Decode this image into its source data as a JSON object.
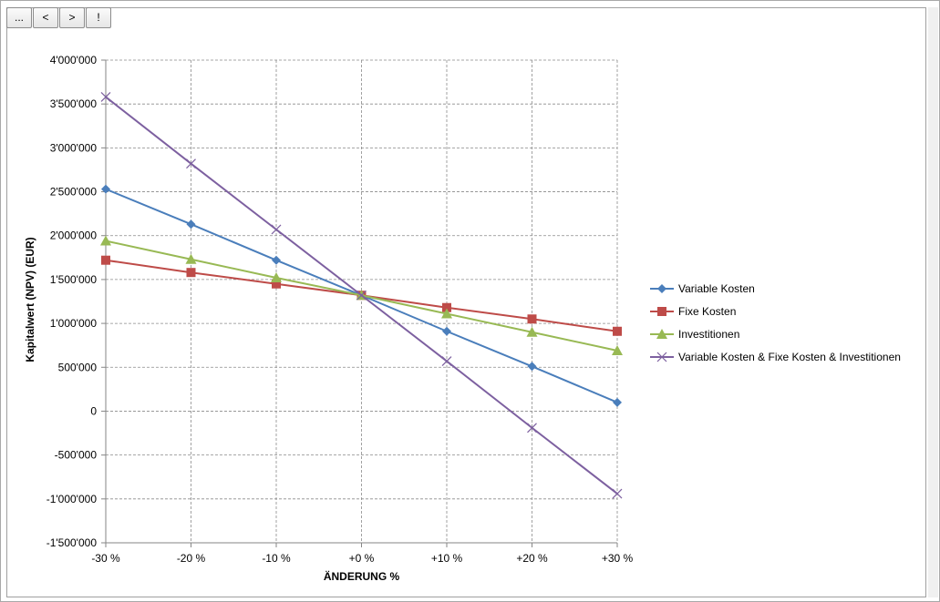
{
  "toolbar": {
    "buttons": [
      "...",
      "<",
      ">",
      "!"
    ]
  },
  "chart_data": {
    "type": "line",
    "categories": [
      "-30 %",
      "-20 %",
      "-10 %",
      "+0 %",
      "+10 %",
      "+20 %",
      "+30 %"
    ],
    "xlabel": "ÄNDERUNG %",
    "ylabel": "Kapitalwert (NPV) (EUR)",
    "ylim": [
      -1500000,
      4000000
    ],
    "ystep": 500000,
    "yticks": [
      "-1'500'000",
      "-1'000'000",
      "-500'000",
      "0",
      "500'000",
      "1'000'000",
      "1'500'000",
      "2'000'000",
      "2'500'000",
      "3'000'000",
      "3'500'000",
      "4'000'000"
    ],
    "grid": true,
    "legend_position": "right",
    "series": [
      {
        "name": "Variable Kosten",
        "color": "#4a7ebb",
        "marker": "diamond",
        "values": [
          2530000,
          2130000,
          1720000,
          1320000,
          910000,
          510000,
          100000
        ]
      },
      {
        "name": "Fixe Kosten",
        "color": "#be4b48",
        "marker": "square",
        "values": [
          1720000,
          1580000,
          1450000,
          1320000,
          1180000,
          1050000,
          910000
        ]
      },
      {
        "name": "Investitionen",
        "color": "#98b954",
        "marker": "triangle",
        "values": [
          1940000,
          1730000,
          1520000,
          1320000,
          1110000,
          900000,
          690000
        ]
      },
      {
        "name": "Variable Kosten & Fixe Kosten & Investitionen",
        "color": "#7d60a0",
        "marker": "x",
        "values": [
          3580000,
          2820000,
          2070000,
          1320000,
          570000,
          -190000,
          -940000
        ]
      }
    ]
  }
}
